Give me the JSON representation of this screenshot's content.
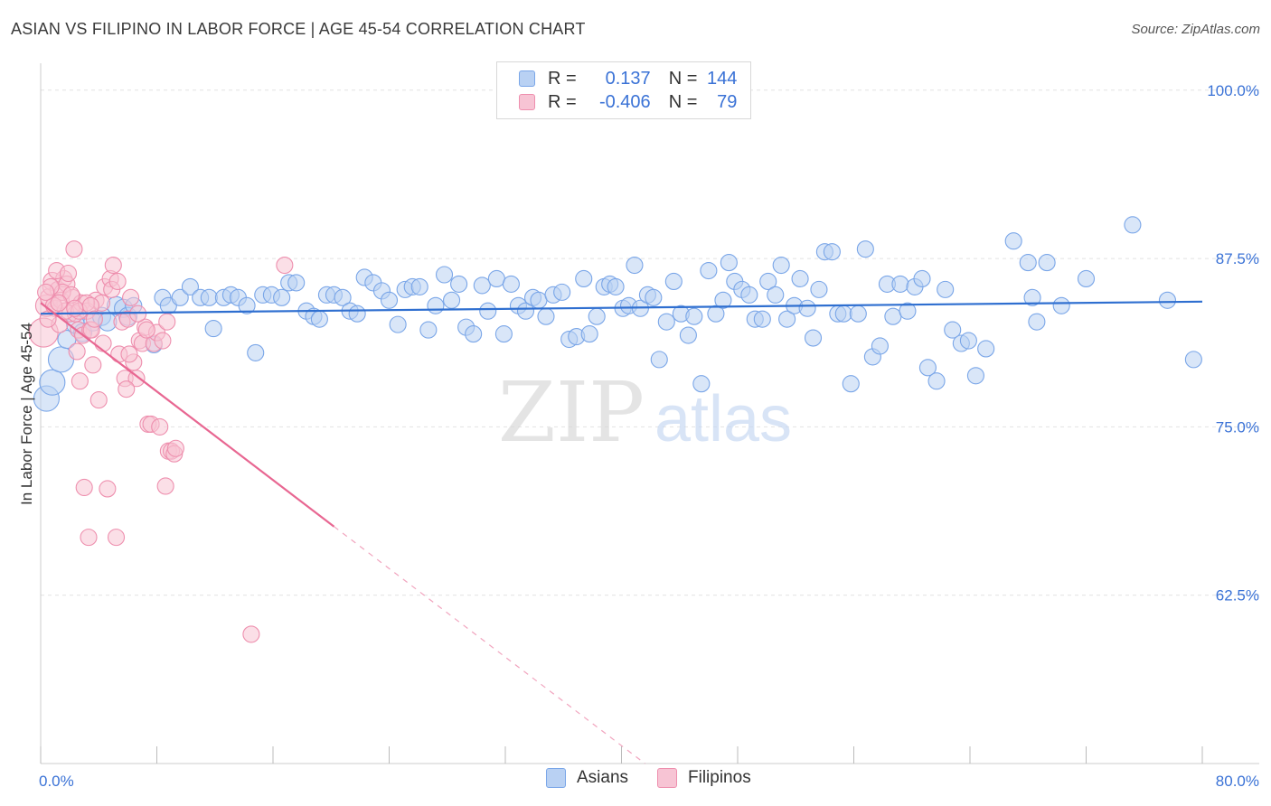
{
  "title": "ASIAN VS FILIPINO IN LABOR FORCE | AGE 45-54 CORRELATION CHART",
  "source": "Source: ZipAtlas.com",
  "watermark": {
    "zip": "ZIP",
    "atlas": "atlas"
  },
  "colors": {
    "asians_fill": "#b9d1f3",
    "asians_stroke": "#7aa6e8",
    "asians_line": "#2f6fd0",
    "filipinos_fill": "#f7c4d4",
    "filipinos_stroke": "#ee8fae",
    "filipinos_line": "#e86792",
    "tick_label": "#3a72d6",
    "grid": "#e2e2e2"
  },
  "legend": {
    "asians": {
      "r_label": "R =",
      "r_value": "0.137",
      "n_label": "N =",
      "n_value": "144"
    },
    "filipinos": {
      "r_label": "R =",
      "r_value": "-0.406",
      "n_label": "N =",
      "n_value": "79"
    }
  },
  "chart_data": {
    "type": "scatter",
    "title": "ASIAN VS FILIPINO IN LABOR FORCE | AGE 45-54 CORRELATION CHART",
    "xlabel": "",
    "ylabel": "In Labor Force | Age 45-54",
    "xlim": [
      0,
      80
    ],
    "ylim": [
      50,
      102
    ],
    "x_tick_labels": [
      "0.0%",
      "80.0%"
    ],
    "y_ticks": [
      62.5,
      75.0,
      87.5,
      100.0
    ],
    "y_tick_labels": [
      "62.5%",
      "75.0%",
      "87.5%",
      "100.0%"
    ],
    "grid": "horizontal dashed",
    "legend_position": "top-center and bottom",
    "series": [
      {
        "name": "Asians",
        "trend": {
          "x0": 0,
          "y0": 83.4,
          "x1": 80,
          "y1": 84.3
        },
        "points": [
          [
            0.4,
            77.1,
            14
          ],
          [
            0.8,
            78.3,
            14
          ],
          [
            1.4,
            80.0,
            14
          ],
          [
            1.8,
            81.5,
            10
          ],
          [
            2.4,
            82.6,
            10
          ],
          [
            2.9,
            82.0,
            10
          ],
          [
            3.6,
            82.8,
            10
          ],
          [
            4.2,
            83.2,
            10
          ],
          [
            4.6,
            82.8,
            10
          ],
          [
            5.2,
            84.0,
            10
          ],
          [
            5.7,
            83.8,
            10
          ],
          [
            6.0,
            83.2,
            10
          ],
          [
            6.4,
            84.0,
            9
          ],
          [
            7.8,
            81.1,
            9
          ],
          [
            8.4,
            84.6,
            9
          ],
          [
            8.8,
            84.0,
            9
          ],
          [
            9.6,
            84.6,
            9
          ],
          [
            10.3,
            85.4,
            9
          ],
          [
            11.0,
            84.6,
            9
          ],
          [
            11.6,
            84.6,
            9
          ],
          [
            11.9,
            82.3,
            9
          ],
          [
            12.6,
            84.6,
            9
          ],
          [
            13.1,
            84.8,
            9
          ],
          [
            13.6,
            84.6,
            9
          ],
          [
            14.2,
            84.0,
            9
          ],
          [
            14.8,
            80.5,
            9
          ],
          [
            15.3,
            84.8,
            9
          ],
          [
            15.9,
            84.8,
            9
          ],
          [
            16.6,
            84.6,
            9
          ],
          [
            17.1,
            85.7,
            9
          ],
          [
            17.6,
            85.7,
            9
          ],
          [
            18.3,
            83.6,
            9
          ],
          [
            18.8,
            83.2,
            9
          ],
          [
            19.2,
            83.0,
            9
          ],
          [
            19.7,
            84.8,
            9
          ],
          [
            20.2,
            84.8,
            9
          ],
          [
            20.8,
            84.6,
            9
          ],
          [
            21.3,
            83.6,
            9
          ],
          [
            21.8,
            83.4,
            9
          ],
          [
            22.3,
            86.1,
            9
          ],
          [
            22.9,
            85.7,
            9
          ],
          [
            23.5,
            85.1,
            9
          ],
          [
            24.0,
            84.4,
            9
          ],
          [
            24.6,
            82.6,
            9
          ],
          [
            25.1,
            85.2,
            9
          ],
          [
            25.6,
            85.4,
            9
          ],
          [
            26.1,
            85.4,
            9
          ],
          [
            26.7,
            82.2,
            9
          ],
          [
            27.2,
            84.0,
            9
          ],
          [
            27.8,
            86.3,
            9
          ],
          [
            28.3,
            84.4,
            9
          ],
          [
            28.8,
            85.6,
            9
          ],
          [
            29.3,
            82.4,
            9
          ],
          [
            29.8,
            81.9,
            9
          ],
          [
            30.4,
            85.5,
            9
          ],
          [
            30.8,
            83.6,
            9
          ],
          [
            31.4,
            86.0,
            9
          ],
          [
            31.9,
            81.9,
            9
          ],
          [
            32.4,
            85.6,
            9
          ],
          [
            32.9,
            84.0,
            9
          ],
          [
            33.4,
            83.6,
            9
          ],
          [
            33.9,
            84.6,
            9
          ],
          [
            34.3,
            84.4,
            9
          ],
          [
            34.8,
            83.2,
            9
          ],
          [
            35.3,
            84.8,
            9
          ],
          [
            35.9,
            85.0,
            9
          ],
          [
            36.4,
            81.5,
            9
          ],
          [
            36.9,
            81.7,
            9
          ],
          [
            37.4,
            86.0,
            9
          ],
          [
            37.8,
            81.9,
            9
          ],
          [
            38.3,
            83.2,
            9
          ],
          [
            38.8,
            85.4,
            9
          ],
          [
            39.2,
            85.6,
            9
          ],
          [
            39.6,
            85.4,
            9
          ],
          [
            40.1,
            83.8,
            9
          ],
          [
            40.5,
            84.0,
            9
          ],
          [
            40.9,
            87.0,
            9
          ],
          [
            41.3,
            83.8,
            9
          ],
          [
            41.8,
            84.8,
            9
          ],
          [
            42.2,
            84.6,
            9
          ],
          [
            42.6,
            80.0,
            9
          ],
          [
            43.1,
            82.8,
            9
          ],
          [
            43.6,
            85.8,
            9
          ],
          [
            44.1,
            83.4,
            9
          ],
          [
            44.6,
            81.8,
            9
          ],
          [
            45.0,
            83.2,
            9
          ],
          [
            45.5,
            78.2,
            9
          ],
          [
            46.0,
            86.6,
            9
          ],
          [
            46.5,
            83.4,
            9
          ],
          [
            47.0,
            84.4,
            9
          ],
          [
            47.4,
            87.2,
            9
          ],
          [
            47.8,
            85.8,
            9
          ],
          [
            48.3,
            85.2,
            9
          ],
          [
            48.8,
            84.8,
            9
          ],
          [
            49.2,
            83.0,
            9
          ],
          [
            49.7,
            83.0,
            9
          ],
          [
            50.1,
            85.8,
            9
          ],
          [
            50.6,
            84.8,
            9
          ],
          [
            51.0,
            87.0,
            9
          ],
          [
            51.4,
            83.0,
            9
          ],
          [
            51.9,
            84.0,
            9
          ],
          [
            52.3,
            86.0,
            9
          ],
          [
            52.8,
            83.8,
            9
          ],
          [
            53.2,
            81.6,
            9
          ],
          [
            53.6,
            85.2,
            9
          ],
          [
            54.0,
            88.0,
            9
          ],
          [
            54.5,
            88.0,
            9
          ],
          [
            54.9,
            83.4,
            9
          ],
          [
            55.3,
            83.4,
            9
          ],
          [
            55.8,
            78.2,
            9
          ],
          [
            56.3,
            83.4,
            9
          ],
          [
            56.8,
            88.2,
            9
          ],
          [
            57.3,
            80.2,
            9
          ],
          [
            57.8,
            81.0,
            9
          ],
          [
            58.3,
            85.6,
            9
          ],
          [
            58.7,
            83.2,
            9
          ],
          [
            59.2,
            85.6,
            9
          ],
          [
            59.7,
            83.6,
            9
          ],
          [
            60.2,
            85.4,
            9
          ],
          [
            60.7,
            86.0,
            9
          ],
          [
            61.1,
            79.4,
            9
          ],
          [
            61.7,
            78.4,
            9
          ],
          [
            62.3,
            85.2,
            9
          ],
          [
            62.8,
            82.2,
            9
          ],
          [
            63.4,
            81.2,
            9
          ],
          [
            63.9,
            81.4,
            9
          ],
          [
            64.4,
            78.8,
            9
          ],
          [
            65.1,
            80.8,
            9
          ],
          [
            67.0,
            88.8,
            9
          ],
          [
            68.0,
            87.2,
            9
          ],
          [
            68.3,
            84.6,
            9
          ],
          [
            68.6,
            82.8,
            9
          ],
          [
            69.3,
            87.2,
            9
          ],
          [
            70.3,
            84.0,
            9
          ],
          [
            72.0,
            86.0,
            9
          ],
          [
            75.2,
            90.0,
            9
          ],
          [
            77.6,
            84.4,
            9
          ],
          [
            79.4,
            80.0,
            9
          ]
        ]
      },
      {
        "name": "Filipinos",
        "trend": {
          "x0": 0,
          "y0": 84.2,
          "x1": 20.2,
          "y1": 67.6,
          "dash_to": {
            "x": 46,
            "y": 46.3
          }
        },
        "points": [
          [
            0.2,
            82.0,
            16
          ],
          [
            0.4,
            84.0,
            12
          ],
          [
            0.6,
            84.6,
            10
          ],
          [
            0.8,
            85.8,
            10
          ],
          [
            1.0,
            83.8,
            9
          ],
          [
            1.2,
            85.2,
            9
          ],
          [
            1.4,
            84.4,
            9
          ],
          [
            1.6,
            86.0,
            9
          ],
          [
            1.8,
            85.6,
            9
          ],
          [
            2.0,
            83.4,
            9
          ],
          [
            2.2,
            84.6,
            9
          ],
          [
            2.3,
            88.2,
            9
          ],
          [
            2.4,
            83.4,
            9
          ],
          [
            2.5,
            80.6,
            9
          ],
          [
            2.6,
            82.2,
            9
          ],
          [
            2.7,
            78.4,
            9
          ],
          [
            2.8,
            84.2,
            9
          ],
          [
            2.9,
            81.8,
            9
          ],
          [
            3.0,
            70.5,
            9
          ],
          [
            3.2,
            83.6,
            9
          ],
          [
            3.3,
            66.8,
            9
          ],
          [
            3.4,
            82.2,
            9
          ],
          [
            3.5,
            82.2,
            9
          ],
          [
            3.6,
            79.6,
            9
          ],
          [
            3.8,
            84.4,
            9
          ],
          [
            4.0,
            77.0,
            9
          ],
          [
            4.2,
            84.2,
            9
          ],
          [
            4.4,
            85.4,
            9
          ],
          [
            4.6,
            70.4,
            9
          ],
          [
            4.8,
            86.0,
            9
          ],
          [
            5.0,
            87.0,
            9
          ],
          [
            5.2,
            66.8,
            9
          ],
          [
            5.4,
            80.4,
            9
          ],
          [
            5.6,
            82.8,
            9
          ],
          [
            5.8,
            78.6,
            9
          ],
          [
            6.0,
            83.0,
            9
          ],
          [
            6.2,
            84.6,
            9
          ],
          [
            6.4,
            79.8,
            9
          ],
          [
            6.6,
            78.6,
            9
          ],
          [
            6.8,
            81.4,
            9
          ],
          [
            7.0,
            81.2,
            9
          ],
          [
            7.2,
            82.4,
            9
          ],
          [
            7.4,
            75.2,
            9
          ],
          [
            7.6,
            75.2,
            9
          ],
          [
            7.8,
            81.2,
            9
          ],
          [
            8.0,
            82.0,
            9
          ],
          [
            8.2,
            75.0,
            9
          ],
          [
            8.4,
            81.4,
            9
          ],
          [
            8.6,
            70.6,
            9
          ],
          [
            8.8,
            73.2,
            9
          ],
          [
            9.0,
            73.2,
            9
          ],
          [
            9.2,
            73.0,
            9
          ],
          [
            14.5,
            59.6,
            9
          ],
          [
            16.8,
            87.0,
            9
          ],
          [
            1.1,
            86.6,
            9
          ],
          [
            1.3,
            82.6,
            9
          ],
          [
            1.5,
            85.0,
            9
          ],
          [
            1.7,
            83.6,
            9
          ],
          [
            1.9,
            86.4,
            9
          ],
          [
            2.1,
            84.8,
            9
          ],
          [
            0.5,
            83.0,
            9
          ],
          [
            0.7,
            85.4,
            9
          ],
          [
            0.9,
            84.0,
            9
          ],
          [
            2.65,
            83.6,
            9
          ],
          [
            3.15,
            84.2,
            9
          ],
          [
            3.45,
            84.0,
            9
          ],
          [
            4.9,
            85.2,
            9
          ],
          [
            5.3,
            85.8,
            9
          ],
          [
            6.1,
            80.4,
            9
          ],
          [
            5.9,
            77.8,
            9
          ],
          [
            9.3,
            73.4,
            9
          ],
          [
            8.7,
            82.8,
            9
          ],
          [
            6.7,
            83.4,
            9
          ],
          [
            7.3,
            82.2,
            9
          ],
          [
            4.3,
            81.2,
            9
          ],
          [
            3.7,
            83.0,
            9
          ],
          [
            2.35,
            83.8,
            9
          ],
          [
            1.25,
            84.2,
            9
          ],
          [
            0.35,
            85.0,
            9
          ]
        ]
      }
    ]
  }
}
